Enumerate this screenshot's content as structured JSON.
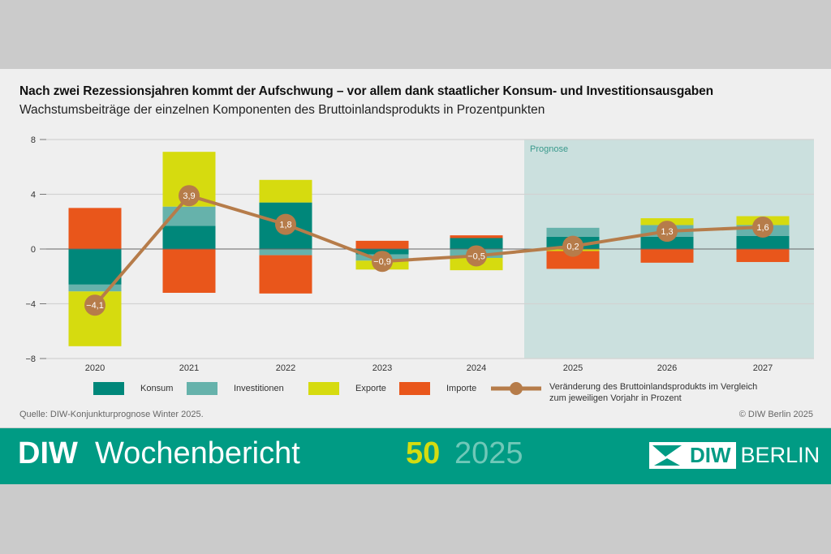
{
  "header": {
    "title": "Nach zwei Rezessionsjahren kommt der Aufschwung – vor allem dank staatlicher Konsum- und Investitionsausgaben",
    "subtitle": "Wachstumsbeiträge der einzelnen Komponenten des Bruttoinlandsprodukts in Prozentpunkten"
  },
  "chart_data": {
    "type": "bar",
    "stacked": true,
    "categories": [
      "2020",
      "2021",
      "2022",
      "2023",
      "2024",
      "2025",
      "2026",
      "2027"
    ],
    "ylim": [
      -8,
      8
    ],
    "yticks": [
      8,
      4,
      0,
      -4,
      -8
    ],
    "ytick_labels": [
      "8",
      "4",
      "0",
      "−4",
      "−8"
    ],
    "grid": true,
    "shaded_region": {
      "label": "Prognose",
      "from": "2025",
      "to": "2027",
      "color": "#cbe0de"
    },
    "series": [
      {
        "name": "Konsum",
        "color": "#00877a",
        "values": [
          -2.6,
          1.7,
          3.4,
          -0.4,
          0.8,
          0.9,
          0.9,
          0.95
        ]
      },
      {
        "name": "Investitionen",
        "color": "#66b2ab",
        "values": [
          -0.5,
          1.4,
          -0.45,
          -0.45,
          -0.65,
          0.65,
          0.85,
          0.8
        ]
      },
      {
        "name": "Exporte",
        "color": "#d6db0f",
        "values": [
          -4.0,
          4.0,
          1.65,
          -0.65,
          -0.9,
          -0.15,
          0.5,
          0.65
        ]
      },
      {
        "name": "Importe",
        "color": "#e9561b",
        "values": [
          3.0,
          -3.2,
          -2.8,
          0.6,
          0.2,
          -1.3,
          -1.0,
          -0.95
        ]
      }
    ],
    "line": {
      "name": "Veränderung des Bruttoinlandsprodukts im Vergleich zum jeweiligen Vorjahr in Prozent",
      "name_line1": "Veränderung des Bruttoinlandsprodukts im Vergleich",
      "name_line2": "zum jeweiligen Vorjahr in Prozent",
      "color": "#b67c4a",
      "values": [
        -4.1,
        3.9,
        1.8,
        -0.9,
        -0.5,
        0.2,
        1.3,
        1.6
      ],
      "labels": [
        "−4,1",
        "3,9",
        "1,8",
        "−0,9",
        "−0,5",
        "0,2",
        "1,3",
        "1,6"
      ]
    },
    "legend": "bottom"
  },
  "footer": {
    "source": "Quelle: DIW-Konjunkturprognose Winter 2025.",
    "copyright": "© DIW Berlin 2025"
  },
  "band": {
    "brand_bold": "DIW",
    "brand_light": "Wochenbericht",
    "issue": "50",
    "year": "2025",
    "logo_text": "DIW BERLIN"
  }
}
